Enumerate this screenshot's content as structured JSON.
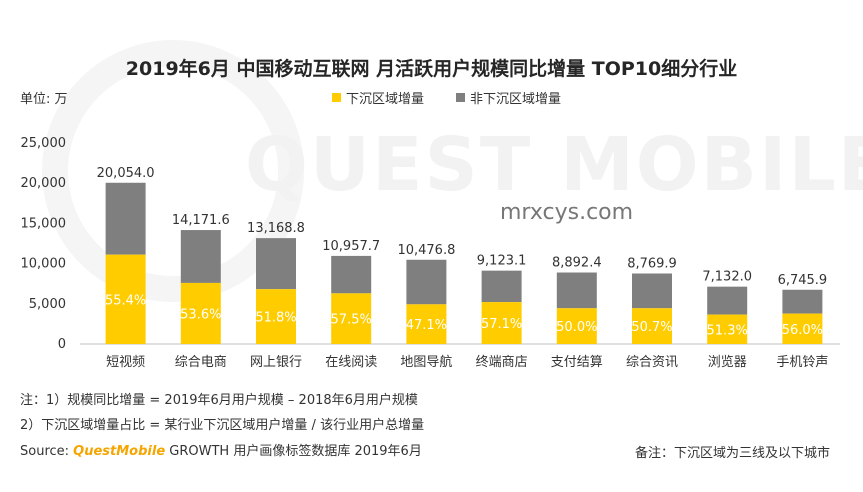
{
  "title": "2019年6月 中国移动互联网 月活跃用户规模同比增量 TOP10细分行业",
  "unit_label": "单位: 万",
  "watermark": {
    "logo_text": "QUEST MOBILE",
    "site_text": "mrxcys.com"
  },
  "colors": {
    "lower_tier": "#FFCC00",
    "non_lower_tier": "#7F7F7F",
    "brand": "#F5A500"
  },
  "chart_data": {
    "type": "bar",
    "stacked": true,
    "title": "2019年6月 中国移动互联网 月活跃用户规模同比增量 TOP10细分行业",
    "xlabel": "",
    "ylabel": "",
    "ylim": [
      0,
      25000
    ],
    "yticks": [
      "0",
      "5,000",
      "10,000",
      "15,000",
      "20,000",
      "25,000"
    ],
    "grid": false,
    "legend_position": "top",
    "categories": [
      "短视频",
      "综合电商",
      "网上银行",
      "在线阅读",
      "地图导航",
      "终端商店",
      "支付结算",
      "综合资讯",
      "浏览器",
      "手机铃声"
    ],
    "totals": [
      20054.0,
      14171.6,
      13168.8,
      10957.7,
      10476.8,
      9123.1,
      8892.4,
      8769.9,
      7132.0,
      6745.9
    ],
    "total_labels": [
      "20,054.0",
      "14,171.6",
      "13,168.8",
      "10,957.7",
      "10,476.8",
      "9,123.1",
      "8,892.4",
      "8,769.9",
      "7,132.0",
      "6,745.9"
    ],
    "lower_tier_share_labels": [
      "55.4%",
      "53.6%",
      "51.8%",
      "57.5%",
      "47.1%",
      "57.1%",
      "50.0%",
      "50.7%",
      "51.3%",
      "56.0%"
    ],
    "lower_tier_share": [
      0.554,
      0.536,
      0.518,
      0.575,
      0.471,
      0.571,
      0.5,
      0.507,
      0.513,
      0.56
    ],
    "series": [
      {
        "name": "下沉区域增量",
        "color": "#FFCC00"
      },
      {
        "name": "非下沉区域增量",
        "color": "#7F7F7F"
      }
    ]
  },
  "notes": {
    "note1": "注：1）规模同比增量 = 2019年6月用户规模 – 2018年6月用户规模",
    "note2": "2）下沉区域增量占比 = 某行业下沉区域用户增量 / 该行业用户总增量",
    "source_prefix": "Source:",
    "source_brand": "QuestMobile",
    "source_rest": "GROWTH 用户画像标签数据库 2019年6月",
    "remark": "备注：下沉区域为三线及以下城市"
  }
}
